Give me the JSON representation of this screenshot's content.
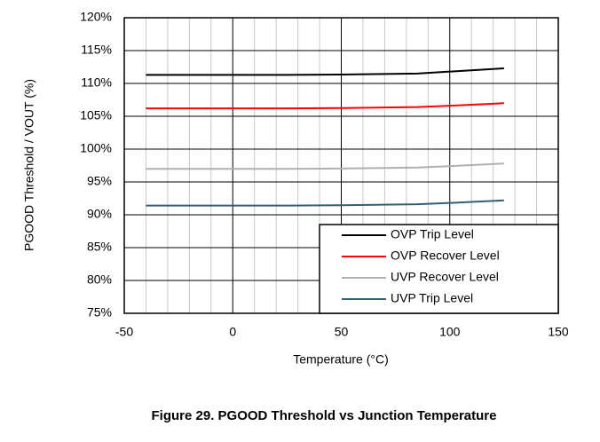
{
  "chart_data": {
    "type": "line",
    "caption": "Figure 29. PGOOD Threshold vs Junction Temperature",
    "x_label": "Temperature (°C)",
    "y_label": "PGOOD Threshold / VOUT (%)",
    "x": [
      -40,
      0,
      25,
      50,
      85,
      100,
      125
    ],
    "series": [
      {
        "name": "OVP Trip Level",
        "color": "#000000",
        "values": [
          111.3,
          111.3,
          111.3,
          111.35,
          111.5,
          111.8,
          112.3
        ]
      },
      {
        "name": "OVP Recover Level",
        "color": "#ff0000",
        "values": [
          106.2,
          106.2,
          106.2,
          106.25,
          106.4,
          106.6,
          107.0
        ]
      },
      {
        "name": "UVP Recover Level",
        "color": "#b0b0b0",
        "values": [
          97.0,
          97.0,
          97.0,
          97.05,
          97.2,
          97.4,
          97.8
        ]
      },
      {
        "name": "UVP Trip Level",
        "color": "#2e5f73",
        "values": [
          91.4,
          91.4,
          91.4,
          91.45,
          91.6,
          91.8,
          92.2
        ]
      }
    ],
    "xlim": [
      -50,
      150
    ],
    "xticks": [
      -50,
      0,
      50,
      100,
      150
    ],
    "ylim": [
      75,
      120
    ],
    "yticks": [
      {
        "value": 75,
        "label": "75%"
      },
      {
        "value": 80,
        "label": "80%"
      },
      {
        "value": 85,
        "label": "85%"
      },
      {
        "value": 90,
        "label": "90%"
      },
      {
        "value": 95,
        "label": "95%"
      },
      {
        "value": 100,
        "label": "100%"
      },
      {
        "value": 105,
        "label": "105%"
      },
      {
        "value": 110,
        "label": "110%"
      },
      {
        "value": 115,
        "label": "115%"
      },
      {
        "value": 120,
        "label": "120%"
      }
    ],
    "grid": true,
    "legend": "lower right"
  }
}
